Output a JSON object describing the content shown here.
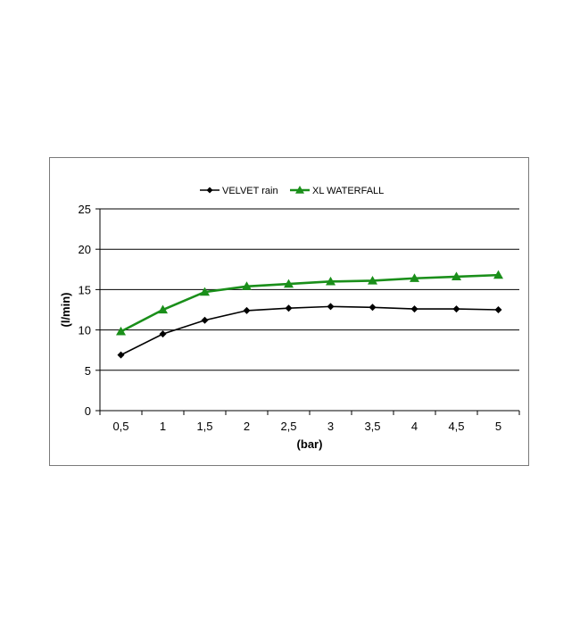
{
  "chart_data": {
    "type": "line",
    "title": "",
    "xlabel": "(bar)",
    "ylabel": "(l/min)",
    "categories": [
      "0,5",
      "1",
      "1,5",
      "2",
      "2,5",
      "3",
      "3,5",
      "4",
      "4,5",
      "5"
    ],
    "ylim": [
      0,
      25
    ],
    "yticks": [
      0,
      5,
      10,
      15,
      20,
      25
    ],
    "grid": true,
    "legend_position": "top",
    "series": [
      {
        "name": "VELVET rain",
        "color": "#000000",
        "marker": "diamond",
        "values": [
          6.9,
          9.5,
          11.2,
          12.4,
          12.7,
          12.9,
          12.8,
          12.6,
          12.6,
          12.5
        ]
      },
      {
        "name": "XL WATERFALL",
        "color": "#1a8f1a",
        "marker": "triangle",
        "values": [
          9.8,
          12.5,
          14.7,
          15.4,
          15.7,
          16.0,
          16.1,
          16.4,
          16.6,
          16.8
        ]
      }
    ]
  }
}
